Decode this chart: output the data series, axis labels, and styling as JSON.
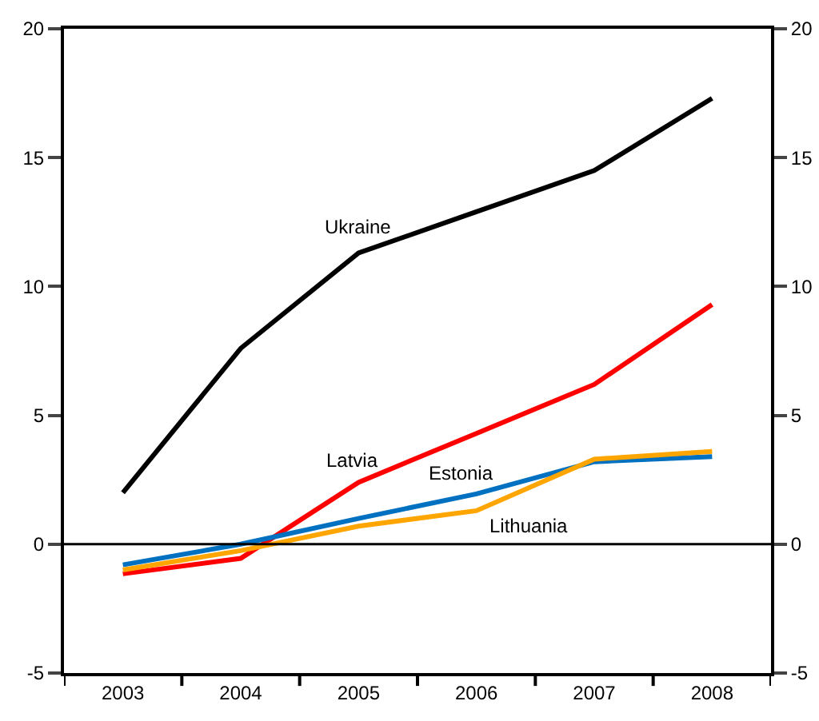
{
  "chart_data": {
    "type": "line",
    "categories": [
      "2003",
      "2004",
      "2005",
      "2006",
      "2007",
      "2008"
    ],
    "series": [
      {
        "name": "Ukraine",
        "color": "#000000",
        "values": [
          2.0,
          7.6,
          11.3,
          12.9,
          14.5,
          17.3
        ]
      },
      {
        "name": "Latvia",
        "color": "#ff0000",
        "values": [
          -1.15,
          -0.55,
          2.4,
          4.3,
          6.2,
          9.3
        ]
      },
      {
        "name": "Estonia",
        "color": "#0070c0",
        "values": [
          -0.8,
          0.0,
          1.0,
          1.95,
          3.2,
          3.4
        ]
      },
      {
        "name": "Lithuania",
        "color": "#ffa500",
        "values": [
          -1.0,
          -0.25,
          0.7,
          1.3,
          3.3,
          3.6
        ]
      }
    ],
    "ylim": [
      -5,
      20
    ],
    "yticks": [
      -5,
      0,
      5,
      10,
      15,
      20
    ],
    "y2lim": [
      -5,
      20
    ],
    "y2ticks": [
      -5,
      0,
      5,
      10,
      15,
      20
    ],
    "ref_lines": [
      {
        "axis": "y",
        "value": 0,
        "color": "#000000"
      }
    ],
    "grid": false,
    "legend": false,
    "marker": "none",
    "line_style": "solid"
  }
}
